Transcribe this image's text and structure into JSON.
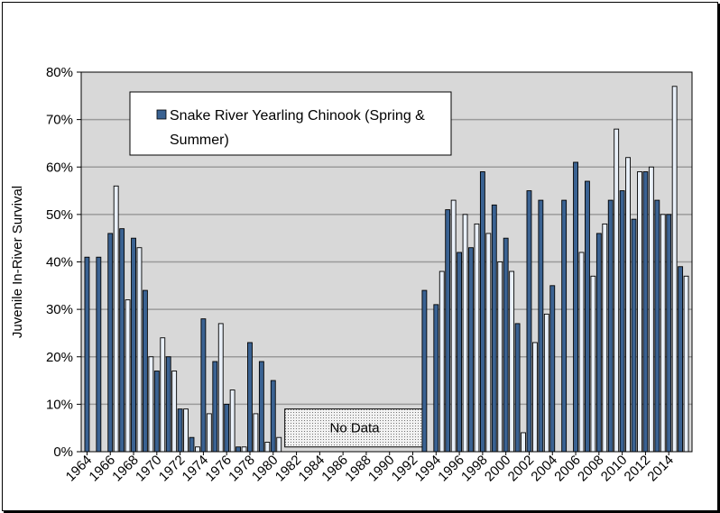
{
  "chart_data": {
    "type": "bar",
    "ylabel": "Juvenile In-River Survival",
    "ylim": [
      0,
      80
    ],
    "ytick_step": 10,
    "ytick_labels": [
      "0%",
      "10%",
      "20%",
      "30%",
      "40%",
      "50%",
      "60%",
      "70%",
      "80%"
    ],
    "x_tick_labels": [
      "1964",
      "1966",
      "1968",
      "1970",
      "1972",
      "1974",
      "1976",
      "1978",
      "1980",
      "1982",
      "1984",
      "1986",
      "1988",
      "1990",
      "1992",
      "1994",
      "1996",
      "1998",
      "2000",
      "2002",
      "2004",
      "2006",
      "2008",
      "2010",
      "2012",
      "2014"
    ],
    "grid": true,
    "legend": {
      "position": "top-left",
      "line1": "Snake River Yearling Chinook (Spring &",
      "line2": "Summer)"
    },
    "no_data_label": "No Data",
    "no_data_range": [
      1981,
      1993
    ],
    "colors": {
      "bar_dark": "#3a6292",
      "bar_light": "#e9f0f9",
      "plot_bg": "#d8d8d8",
      "grid": "#9a9a9a"
    },
    "bars": [
      {
        "x": 1964.0,
        "v": 41,
        "c": "d"
      },
      {
        "x": 1965.0,
        "v": 41,
        "c": "d"
      },
      {
        "x": 1966.0,
        "v": 46,
        "c": "d"
      },
      {
        "x": 1966.5,
        "v": 56,
        "c": "l"
      },
      {
        "x": 1967.0,
        "v": 47,
        "c": "d"
      },
      {
        "x": 1967.5,
        "v": 32,
        "c": "l"
      },
      {
        "x": 1968.0,
        "v": 45,
        "c": "d"
      },
      {
        "x": 1968.5,
        "v": 43,
        "c": "l"
      },
      {
        "x": 1969.0,
        "v": 34,
        "c": "d"
      },
      {
        "x": 1969.5,
        "v": 20,
        "c": "l"
      },
      {
        "x": 1970.0,
        "v": 17,
        "c": "d"
      },
      {
        "x": 1970.5,
        "v": 24,
        "c": "l"
      },
      {
        "x": 1971.0,
        "v": 20,
        "c": "d"
      },
      {
        "x": 1971.5,
        "v": 17,
        "c": "l"
      },
      {
        "x": 1972.0,
        "v": 9,
        "c": "d"
      },
      {
        "x": 1972.5,
        "v": 9,
        "c": "l"
      },
      {
        "x": 1973.0,
        "v": 3,
        "c": "d"
      },
      {
        "x": 1973.5,
        "v": 1,
        "c": "l"
      },
      {
        "x": 1974.0,
        "v": 28,
        "c": "d"
      },
      {
        "x": 1974.5,
        "v": 8,
        "c": "l"
      },
      {
        "x": 1975.0,
        "v": 19,
        "c": "d"
      },
      {
        "x": 1975.5,
        "v": 27,
        "c": "l"
      },
      {
        "x": 1976.0,
        "v": 10,
        "c": "d"
      },
      {
        "x": 1976.5,
        "v": 13,
        "c": "l"
      },
      {
        "x": 1977.0,
        "v": 1,
        "c": "d"
      },
      {
        "x": 1977.5,
        "v": 1,
        "c": "l"
      },
      {
        "x": 1978.0,
        "v": 23,
        "c": "d"
      },
      {
        "x": 1978.5,
        "v": 8,
        "c": "l"
      },
      {
        "x": 1979.0,
        "v": 19,
        "c": "d"
      },
      {
        "x": 1979.5,
        "v": 2,
        "c": "l"
      },
      {
        "x": 1980.0,
        "v": 15,
        "c": "d"
      },
      {
        "x": 1980.5,
        "v": 3,
        "c": "l"
      },
      {
        "x": 1993.0,
        "v": 34,
        "c": "d"
      },
      {
        "x": 1994.0,
        "v": 31,
        "c": "d"
      },
      {
        "x": 1994.5,
        "v": 38,
        "c": "l"
      },
      {
        "x": 1995.0,
        "v": 51,
        "c": "d"
      },
      {
        "x": 1995.5,
        "v": 53,
        "c": "l"
      },
      {
        "x": 1996.0,
        "v": 42,
        "c": "d"
      },
      {
        "x": 1996.5,
        "v": 50,
        "c": "l"
      },
      {
        "x": 1997.0,
        "v": 43,
        "c": "d"
      },
      {
        "x": 1997.5,
        "v": 48,
        "c": "l"
      },
      {
        "x": 1998.0,
        "v": 59,
        "c": "d"
      },
      {
        "x": 1998.5,
        "v": 46,
        "c": "l"
      },
      {
        "x": 1999.0,
        "v": 52,
        "c": "d"
      },
      {
        "x": 1999.5,
        "v": 40,
        "c": "l"
      },
      {
        "x": 2000.0,
        "v": 45,
        "c": "d"
      },
      {
        "x": 2000.5,
        "v": 38,
        "c": "l"
      },
      {
        "x": 2001.0,
        "v": 27,
        "c": "d"
      },
      {
        "x": 2001.5,
        "v": 4,
        "c": "l"
      },
      {
        "x": 2002.0,
        "v": 55,
        "c": "d"
      },
      {
        "x": 2002.5,
        "v": 23,
        "c": "l"
      },
      {
        "x": 2003.0,
        "v": 53,
        "c": "d"
      },
      {
        "x": 2003.5,
        "v": 29,
        "c": "l"
      },
      {
        "x": 2004.0,
        "v": 35,
        "c": "d"
      },
      {
        "x": 2005.0,
        "v": 53,
        "c": "d"
      },
      {
        "x": 2006.0,
        "v": 61,
        "c": "d"
      },
      {
        "x": 2006.5,
        "v": 42,
        "c": "l"
      },
      {
        "x": 2007.0,
        "v": 57,
        "c": "d"
      },
      {
        "x": 2007.5,
        "v": 37,
        "c": "l"
      },
      {
        "x": 2008.0,
        "v": 46,
        "c": "d"
      },
      {
        "x": 2008.5,
        "v": 48,
        "c": "l"
      },
      {
        "x": 2009.0,
        "v": 53,
        "c": "d"
      },
      {
        "x": 2009.5,
        "v": 68,
        "c": "l"
      },
      {
        "x": 2010.0,
        "v": 55,
        "c": "d"
      },
      {
        "x": 2010.5,
        "v": 62,
        "c": "l"
      },
      {
        "x": 2011.0,
        "v": 49,
        "c": "d"
      },
      {
        "x": 2011.5,
        "v": 59,
        "c": "l"
      },
      {
        "x": 2012.0,
        "v": 59,
        "c": "d"
      },
      {
        "x": 2012.5,
        "v": 60,
        "c": "l"
      },
      {
        "x": 2013.0,
        "v": 53,
        "c": "d"
      },
      {
        "x": 2013.5,
        "v": 50,
        "c": "l"
      },
      {
        "x": 2014.0,
        "v": 50,
        "c": "d"
      },
      {
        "x": 2014.5,
        "v": 77,
        "c": "l"
      },
      {
        "x": 2015.0,
        "v": 39,
        "c": "d"
      },
      {
        "x": 2015.5,
        "v": 37,
        "c": "l"
      }
    ]
  }
}
